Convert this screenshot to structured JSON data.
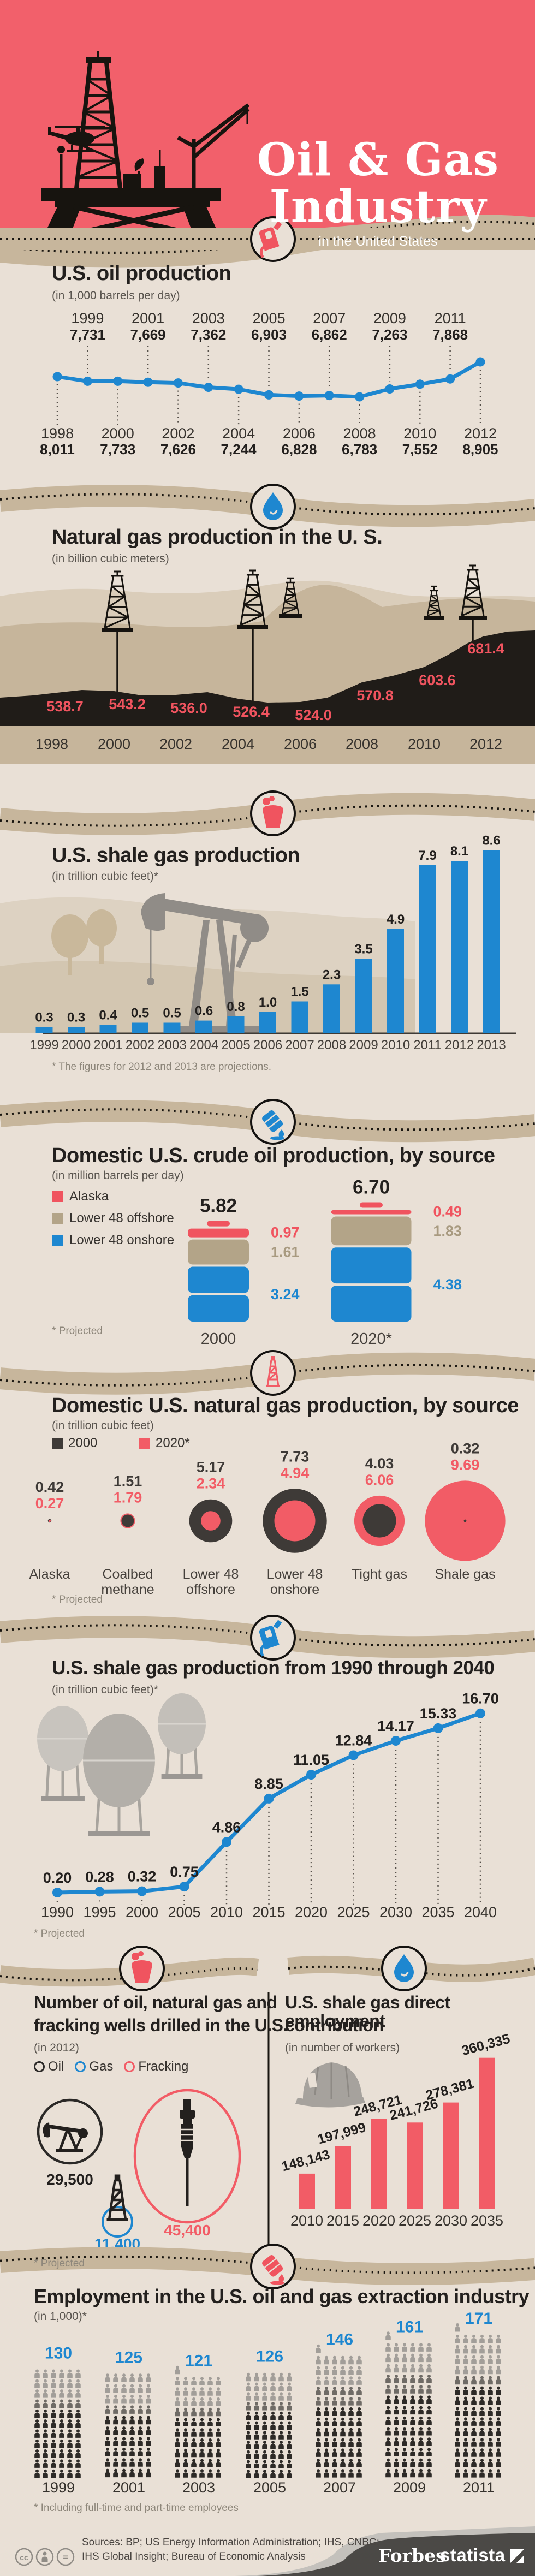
{
  "header": {
    "title_line1": "Oil & Gas",
    "title_line2": "Industry",
    "subtitle": "in the United States"
  },
  "colors": {
    "header_red": "#F2606B",
    "beige": "#E9E0D6",
    "tan_band": "#C7B69C",
    "blue": "#1E87D0",
    "accent_red": "#F0545F",
    "dark": "#23201E",
    "gray_2000": "#3E3A37",
    "red_2020": "#F25C66",
    "offshore_tan": "#B3A488",
    "footer_dark": "#4B4946",
    "silhouette_gray": "#908C87"
  },
  "chart_data": [
    {
      "id": "oil_production",
      "type": "line",
      "title": "U.S. oil production",
      "subtitle": "(in 1,000 barrels per day)",
      "x": [
        1998,
        1999,
        2000,
        2001,
        2002,
        2003,
        2004,
        2005,
        2006,
        2007,
        2008,
        2009,
        2010,
        2011,
        2012
      ],
      "values": [
        8011,
        7731,
        7733,
        7669,
        7626,
        7362,
        7244,
        6903,
        6828,
        6862,
        6783,
        7263,
        7552,
        7868,
        8905
      ],
      "labels": [
        "8,011",
        "7,731",
        "7,733",
        "7,669",
        "7,626",
        "7,362",
        "7,244",
        "6,903",
        "6,828",
        "6,862",
        "6,783",
        "7,263",
        "7,552",
        "7,868",
        "8,905"
      ],
      "line_color": "#1E87D0",
      "grid": false,
      "legend_position": "none"
    },
    {
      "id": "natural_gas",
      "type": "area",
      "title": "Natural gas production in the U. S.",
      "subtitle": "(in billion cubic meters)",
      "x": [
        1998,
        2000,
        2002,
        2004,
        2006,
        2008,
        2010,
        2012
      ],
      "values": [
        538.7,
        543.2,
        536.0,
        526.4,
        524.0,
        570.8,
        603.6,
        681.4
      ],
      "labels": [
        "538.7",
        "543.2",
        "536.0",
        "526.4",
        "524.0",
        "570.8",
        "603.6",
        "681.4"
      ],
      "area_color": "#201C18",
      "label_color": "#F0545F"
    },
    {
      "id": "shale_gas",
      "type": "bar",
      "title": "U.S. shale gas production",
      "subtitle": "(in trillion cubic feet)*",
      "footnote": "* The figures for 2012 and 2013 are projections.",
      "x": [
        1999,
        2000,
        2001,
        2002,
        2003,
        2004,
        2005,
        2006,
        2007,
        2008,
        2009,
        2010,
        2011,
        2012,
        2013
      ],
      "values": [
        0.3,
        0.3,
        0.4,
        0.5,
        0.5,
        0.6,
        0.8,
        1.0,
        1.5,
        2.3,
        3.5,
        4.9,
        7.9,
        8.1,
        8.6
      ],
      "labels": [
        "0.3",
        "0.3",
        "0.4",
        "0.5",
        "0.5",
        "0.6",
        "0.8",
        "1.0",
        "1.5",
        "2.3",
        "3.5",
        "4.9",
        "7.9",
        "8.1",
        "8.6"
      ],
      "bar_color": "#1E87D0"
    },
    {
      "id": "crude_by_source",
      "type": "stacked-bar",
      "title": "Domestic U.S. crude oil production, by source",
      "subtitle": "(in million barrels per day)",
      "footnote": "* Projected",
      "categories": [
        "2000",
        "2020*"
      ],
      "totals": [
        "5.82",
        "6.70"
      ],
      "series": [
        {
          "name": "Alaska",
          "color": "#F0545F",
          "values": [
            0.97,
            0.49
          ]
        },
        {
          "name": "Lower 48 offshore",
          "color": "#B3A488",
          "values": [
            1.61,
            1.83
          ]
        },
        {
          "name": "Lower 48 onshore",
          "color": "#1E87D0",
          "values": [
            3.24,
            4.38
          ]
        }
      ]
    },
    {
      "id": "gas_by_source",
      "type": "bubble",
      "title": "Domestic U.S. natural gas production, by source",
      "subtitle": "(in trillion cubic feet)",
      "footnote": "* Projected",
      "categories": [
        [
          "Alaska"
        ],
        [
          "Coalbed",
          "methane"
        ],
        [
          "Lower 48",
          "offshore"
        ],
        [
          "Lower 48",
          "onshore"
        ],
        [
          "Tight gas"
        ],
        [
          "Shale gas"
        ]
      ],
      "series": [
        {
          "name": "2000",
          "color": "#3E3A37",
          "values": [
            0.42,
            1.51,
            5.17,
            7.73,
            4.03,
            0.32
          ],
          "labels": [
            "0.42",
            "1.51",
            "5.17",
            "7.73",
            "4.03",
            "0.32"
          ]
        },
        {
          "name": "2020*",
          "color": "#F25C66",
          "values": [
            0.27,
            1.79,
            2.34,
            4.94,
            6.06,
            9.69
          ],
          "labels": [
            "0.27",
            "1.79",
            "2.34",
            "4.94",
            "6.06",
            "9.69"
          ]
        }
      ]
    },
    {
      "id": "shale_projection",
      "type": "line",
      "title": "U.S. shale gas production from 1990 through 2040",
      "subtitle": "(in trillion cubic feet)*",
      "footnote": "* Projected",
      "x": [
        1990,
        1995,
        2000,
        2005,
        2010,
        2015,
        2020,
        2025,
        2030,
        2035,
        2040
      ],
      "values": [
        0.2,
        0.28,
        0.32,
        0.75,
        4.86,
        8.85,
        11.05,
        12.84,
        14.17,
        15.33,
        16.7
      ],
      "labels": [
        "0.20",
        "0.28",
        "0.32",
        "0.75",
        "4.86",
        "8.85",
        "11.05",
        "12.84",
        "14.17",
        "15.33",
        "16.70"
      ],
      "line_color": "#1E87D0"
    },
    {
      "id": "wells",
      "type": "bubble",
      "title": "Number of oil, natural gas and fracking wells drilled in the U.S.",
      "title_line1": "Number of oil, natural gas and",
      "title_line2": "fracking wells drilled in the U.S.",
      "subtitle": "(in 2012)",
      "footnote": "* Projected",
      "categories": [
        "Oil",
        "Gas",
        "Fracking"
      ],
      "values": [
        29500,
        11400,
        45400
      ],
      "labels": [
        "29,500",
        "11,400",
        "45,400"
      ],
      "colors": [
        "#2B2927",
        "#1E87D0",
        "#F25C66"
      ]
    },
    {
      "id": "shale_employment",
      "type": "bar",
      "title": "U.S. shale gas direct employment contribution",
      "title_line1": "U.S. shale gas direct employment",
      "title_line2": "contribution",
      "subtitle": "(in number of workers)",
      "x": [
        2010,
        2015,
        2020,
        2025,
        2030,
        2035
      ],
      "values": [
        148143,
        197999,
        248721,
        241726,
        278381,
        360335
      ],
      "labels": [
        "148,143",
        "197,999",
        "248,721",
        "241,726",
        "278,381",
        "360,335"
      ],
      "bar_color": "#F25C66"
    },
    {
      "id": "employment",
      "type": "pictogram",
      "title": "Employment in the U.S. oil and gas extraction industry",
      "subtitle": "(in 1,000)*",
      "footnote": "* Including full-time and part-time employees",
      "x": [
        1999,
        2001,
        2003,
        2005,
        2007,
        2009,
        2011
      ],
      "values": [
        130,
        125,
        121,
        126,
        146,
        161,
        171
      ],
      "labels": [
        "130",
        "125",
        "121",
        "126",
        "146",
        "161",
        "171"
      ]
    }
  ],
  "footer": {
    "sources_line1": "Sources: BP; US Energy Information Administration; IHS, CNBC;",
    "sources_line2": "IHS Global Insight; Bureau of Economic Analysis",
    "brand_forbes": "Forbes",
    "brand_statista": "statista"
  }
}
